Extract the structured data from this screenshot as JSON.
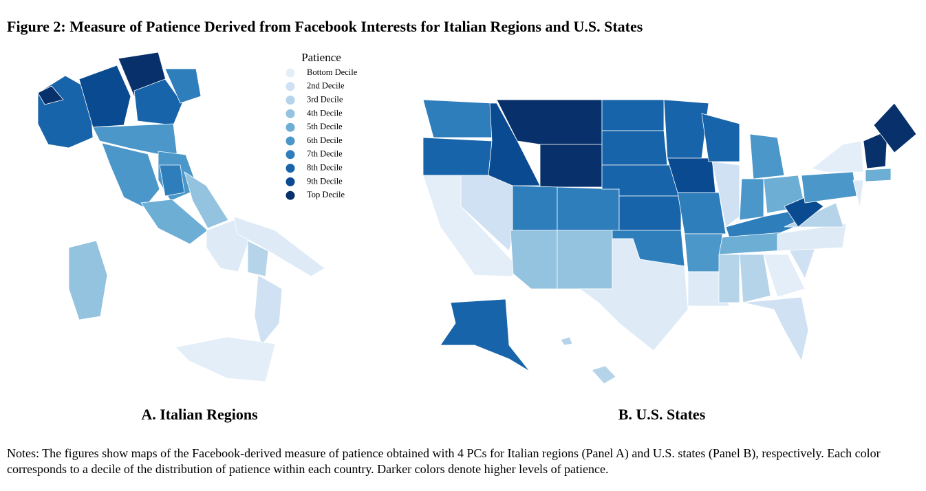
{
  "figure": {
    "title": "Figure 2: Measure of Patience Derived from Facebook Interests for Italian Regions and U.S. States",
    "legend": {
      "title": "Patience",
      "items": [
        {
          "label": "Bottom Decile",
          "color": "#e3eef9"
        },
        {
          "label": "2nd Decile",
          "color": "#cfe1f2"
        },
        {
          "label": "3rd Decile",
          "color": "#b5d4e9"
        },
        {
          "label": "4th Decile",
          "color": "#93c3df"
        },
        {
          "label": "5th Decile",
          "color": "#6daed5"
        },
        {
          "label": "6th Decile",
          "color": "#4b97c9"
        },
        {
          "label": "7th Decile",
          "color": "#2f7ebc"
        },
        {
          "label": "8th Decile",
          "color": "#1864aa"
        },
        {
          "label": "9th Decile",
          "color": "#0a4a90"
        },
        {
          "label": "Top Decile",
          "color": "#08306b"
        }
      ]
    },
    "panels": [
      "A. Italian Regions",
      "B. U.S. States"
    ],
    "notes": "Notes: The figures show maps of the Facebook-derived measure of patience obtained with 4 PCs for Italian regions (Panel A) and U.S. states (Panel B), respectively. Each color corresponds to a decile of the distribution of patience within each country. Darker colors denote higher levels of patience."
  }
}
